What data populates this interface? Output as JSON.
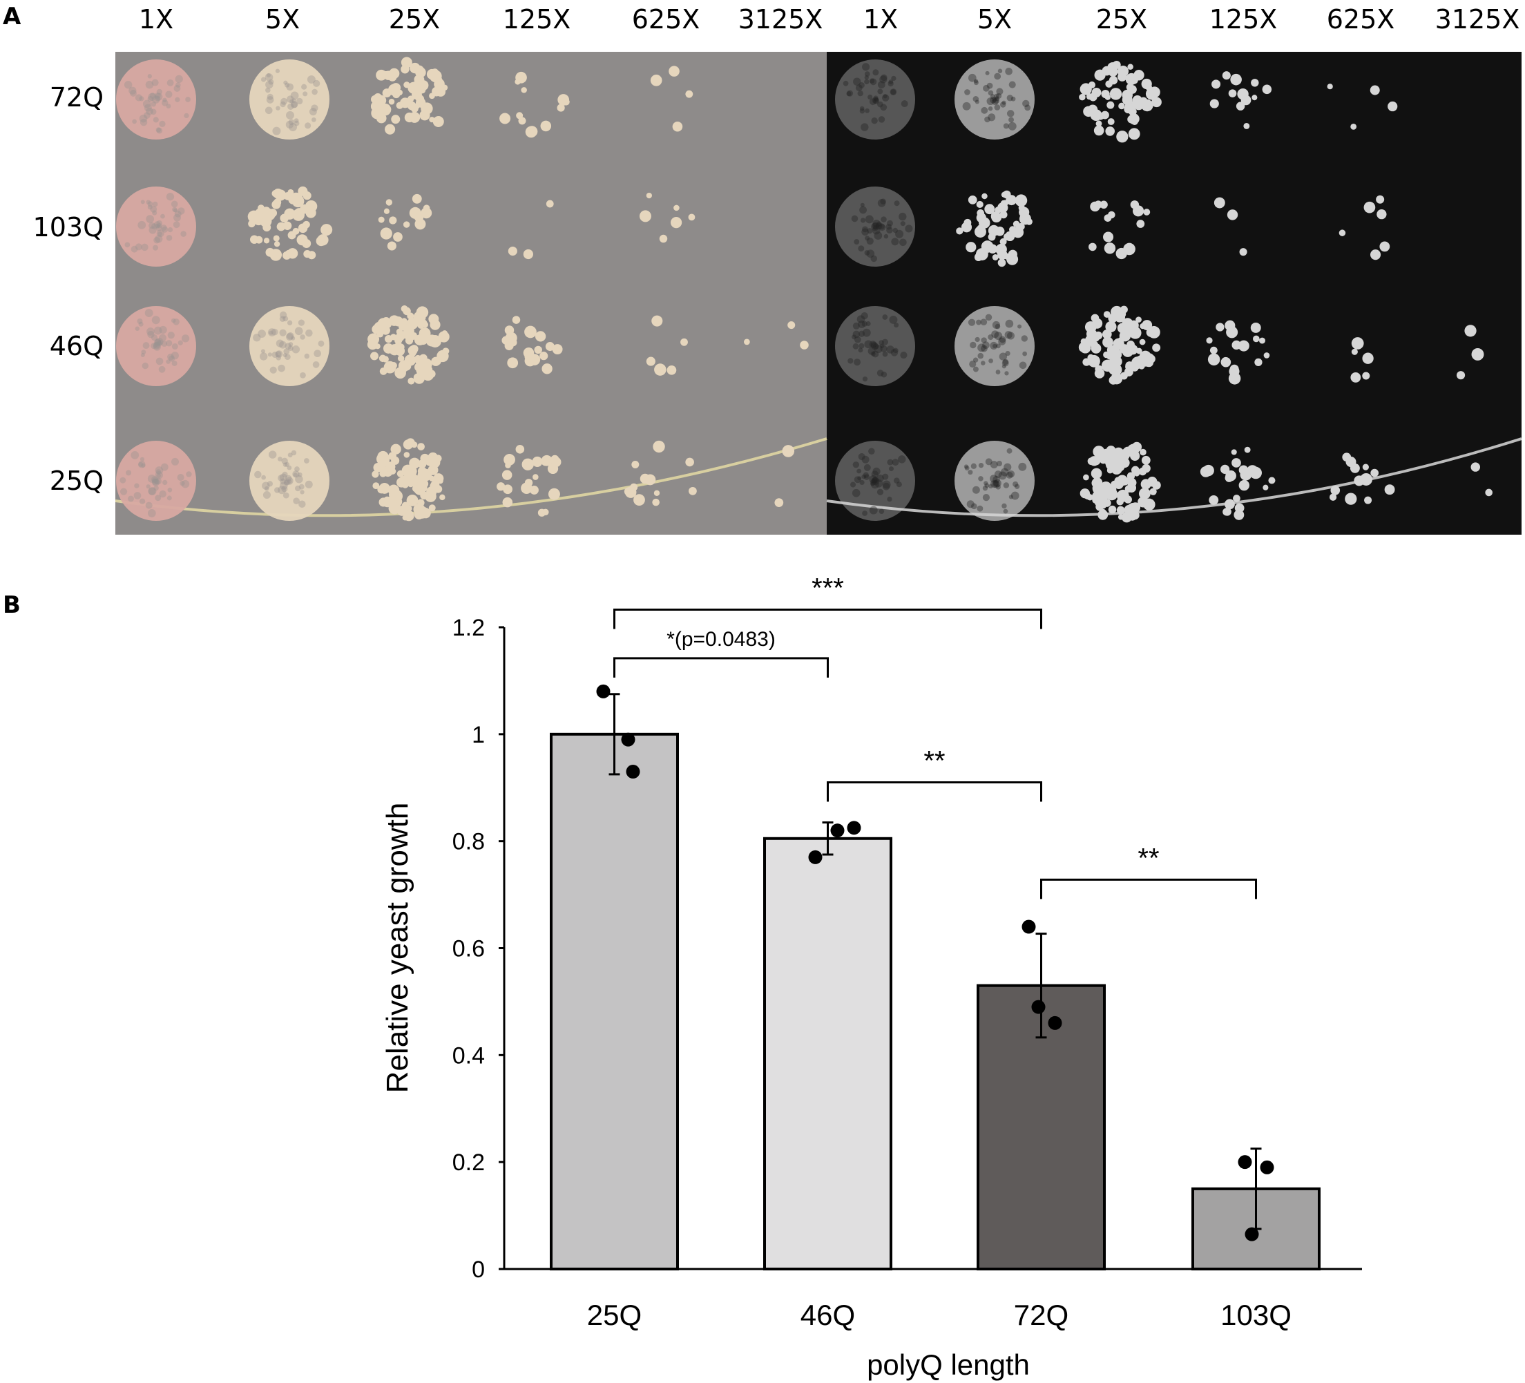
{
  "panel_a": {
    "label": "A",
    "column_labels": [
      "1X",
      "5X",
      "25X",
      "125X",
      "625X",
      "3125X"
    ],
    "row_labels": [
      "72Q",
      "103Q",
      "46Q",
      "25Q"
    ],
    "plate_colors": {
      "left_bg": "#8e8b8a",
      "left_spot": "#e6d6bd",
      "left_spot_1x": "#d8a9a2",
      "right_bg": "#111111",
      "right_spot": "#d6d6d6"
    },
    "approx_colony_counts": {
      "72Q": [
        "lawn",
        "lawn",
        60,
        12,
        4,
        0
      ],
      "103Q": [
        "lawn",
        55,
        14,
        3,
        6,
        0
      ],
      "46Q": [
        "lawn",
        "lawn",
        "dense",
        18,
        5,
        3
      ],
      "25Q": [
        "lawn",
        "lawn",
        "dense",
        22,
        12,
        2
      ]
    }
  },
  "panel_b": {
    "label": "B"
  },
  "chart_data": {
    "type": "bar",
    "categories": [
      "25Q",
      "46Q",
      "72Q",
      "103Q"
    ],
    "values": [
      1.0,
      0.805,
      0.53,
      0.15
    ],
    "error": [
      0.075,
      0.03,
      0.097,
      0.075
    ],
    "points": [
      [
        1.08,
        0.99,
        0.93
      ],
      [
        0.77,
        0.82,
        0.825
      ],
      [
        0.64,
        0.49,
        0.46
      ],
      [
        0.2,
        0.19,
        0.065
      ]
    ],
    "bar_colors": [
      "#c4c3c4",
      "#e0dfe0",
      "#5f5b5a",
      "#a3a2a2"
    ],
    "xlabel": "polyQ length",
    "ylabel": "Relative yeast growth",
    "ylim": [
      0,
      1.2
    ],
    "yticks": [
      "0",
      "0.2",
      "0.4",
      "0.6",
      "0.8",
      "1",
      "1.2"
    ],
    "grid": false,
    "significance": [
      {
        "from": "25Q",
        "to": "72Q",
        "label": "***"
      },
      {
        "from": "25Q",
        "to": "46Q",
        "label": "*(p=0.0483)"
      },
      {
        "from": "46Q",
        "to": "72Q",
        "label": "**"
      },
      {
        "from": "72Q",
        "to": "103Q",
        "label": "**"
      }
    ]
  }
}
